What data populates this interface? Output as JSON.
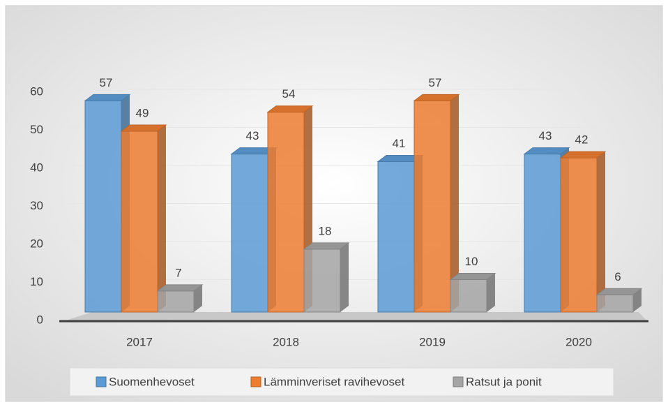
{
  "chart_data": {
    "type": "bar3d",
    "categories": [
      "2017",
      "2018",
      "2019",
      "2020"
    ],
    "series": [
      {
        "name": "Suomenhevoset",
        "color": "#5b9bd5",
        "values": [
          57,
          43,
          41,
          43
        ]
      },
      {
        "name": "Lämminveriset ravihevoset",
        "color": "#ed7d31",
        "values": [
          49,
          54,
          57,
          42
        ]
      },
      {
        "name": "Ratsut ja ponit",
        "color": "#a5a5a5",
        "values": [
          7,
          18,
          10,
          6
        ]
      }
    ],
    "ylim": [
      0,
      60
    ],
    "yticks": [
      0,
      10,
      20,
      30,
      40,
      50,
      60
    ],
    "grid": true,
    "legend": "bottom"
  }
}
